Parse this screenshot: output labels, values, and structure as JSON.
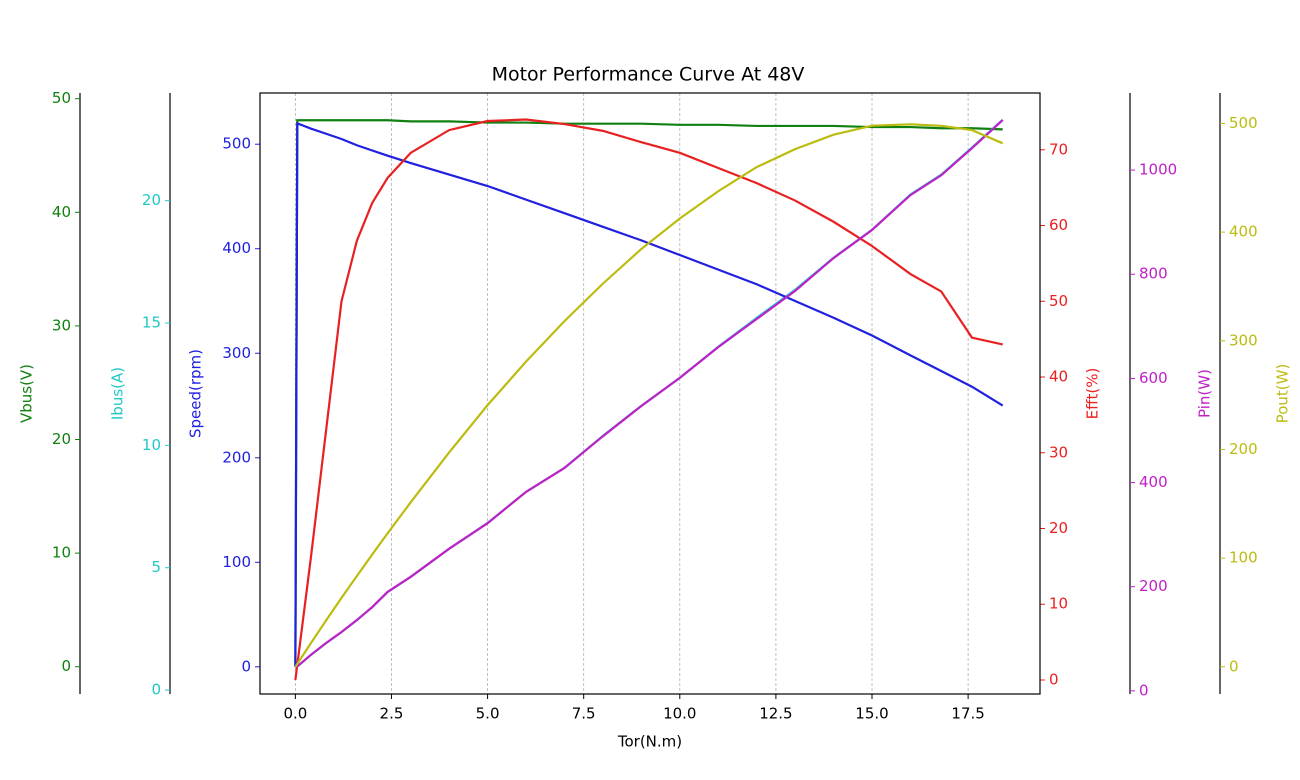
{
  "chart_data": {
    "type": "line",
    "title": "Motor Performance Curve At 48V",
    "xlabel": "Tor(N.m)",
    "x": [
      0,
      0.05,
      0.4,
      0.8,
      1.2,
      1.6,
      2.0,
      2.4,
      3.0,
      4.0,
      5.0,
      6.0,
      7.0,
      8.0,
      9.0,
      10.0,
      11.0,
      12.0,
      13.0,
      14.0,
      15.0,
      16.0,
      16.8,
      17.6,
      18.4
    ],
    "xlim": [
      -0.92,
      19.37
    ],
    "xticks": [
      {
        "value": 0,
        "label": "0.0"
      },
      2.5,
      {
        "value": 5,
        "label": "5.0"
      },
      7.5,
      {
        "value": 10,
        "label": "10.0"
      },
      12.5,
      {
        "value": 15,
        "label": "15.0"
      },
      17.5
    ],
    "grid": true,
    "series": [
      {
        "name": "Vbus(V)",
        "color": "#108010",
        "side": "left",
        "ylim": [
          -2.4,
          50.5
        ],
        "yticks": [
          0,
          10,
          20,
          30,
          40,
          50
        ],
        "values": [
          0,
          48.1,
          48.1,
          48.1,
          48.1,
          48.1,
          48.1,
          48.1,
          48.0,
          48.0,
          47.9,
          47.9,
          47.8,
          47.8,
          47.8,
          47.7,
          47.7,
          47.6,
          47.6,
          47.6,
          47.5,
          47.5,
          47.4,
          47.4,
          47.3
        ]
      },
      {
        "name": "Ibus(A)",
        "color": "#20c8c8",
        "side": "left",
        "ylim": [
          -0.16,
          24.4
        ],
        "yticks": [
          0,
          5,
          10,
          15,
          20
        ],
        "values": [
          0.94,
          0.96,
          1.43,
          1.92,
          2.37,
          2.86,
          3.39,
          4.01,
          4.62,
          5.77,
          6.83,
          8.1,
          9.08,
          10.39,
          11.62,
          12.76,
          14.03,
          15.21,
          16.36,
          17.67,
          18.81,
          20.25,
          21.06,
          22.17,
          23.31
        ]
      },
      {
        "name": "Speed(rpm)",
        "color": "#2020e0",
        "side": "left",
        "ylim": [
          -26,
          549
        ],
        "yticks": [
          0,
          100,
          200,
          300,
          400,
          500
        ],
        "values": [
          0,
          520,
          515,
          510,
          505,
          499,
          494,
          489,
          482,
          471,
          460,
          447,
          434,
          421,
          408,
          394,
          380,
          366,
          350,
          334,
          317,
          298,
          283,
          268,
          250
        ]
      },
      {
        "name": "Efft(%)",
        "color": "#e82020",
        "side": "right",
        "ylim": [
          -1.85,
          77.5
        ],
        "yticks": [
          0,
          10,
          20,
          30,
          40,
          50,
          60,
          70
        ],
        "values": [
          0,
          2,
          16,
          33,
          50,
          58,
          63,
          66.3,
          69.6,
          72.6,
          73.8,
          74.0,
          73.4,
          72.5,
          71,
          69.6,
          67.6,
          65.6,
          63.3,
          60.5,
          57.3,
          53.6,
          51.3,
          45.2,
          44.3
        ]
      },
      {
        "name": "Pin(W)",
        "color": "#c020c8",
        "side": "right",
        "ylim": [
          -6,
          1148
        ],
        "yticks": [
          0,
          200,
          400,
          600,
          800,
          1000
        ],
        "values": [
          46,
          47,
          69,
          92,
          113,
          136,
          161,
          190,
          219,
          273,
          322,
          382,
          428,
          489,
          547,
          601,
          660,
          714,
          768,
          831,
          885,
          952,
          990,
          1042,
          1096
        ]
      },
      {
        "name": "Pout(W)",
        "color": "#bcbc10",
        "side": "right",
        "ylim": [
          -25,
          528
        ],
        "yticks": [
          0,
          100,
          200,
          300,
          400,
          500
        ],
        "values": [
          0,
          2.7,
          21.6,
          42.7,
          63.4,
          83.6,
          103.4,
          122.9,
          151.4,
          197.3,
          240.8,
          280.8,
          318.1,
          352.6,
          384.5,
          412.5,
          437.6,
          459.8,
          476.4,
          489.6,
          497.9,
          499.2,
          497.8,
          493.9,
          481.7
        ]
      }
    ]
  }
}
